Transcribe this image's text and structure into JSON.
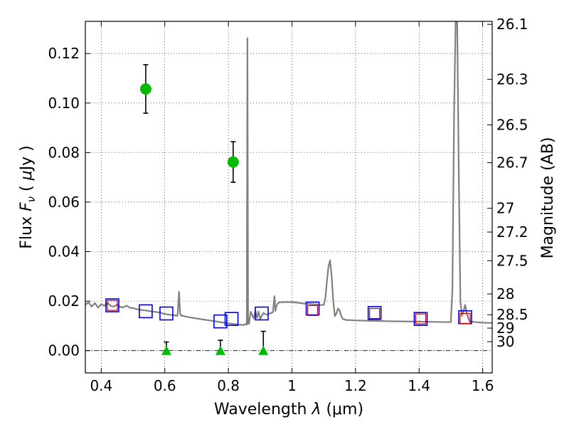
{
  "chart_data": {
    "type": "scatter",
    "xlabel": "Wavelength  λ (μm)",
    "ylabel": "Flux  Fν  ( μJy )",
    "ylabel_parts": {
      "prefix": "Flux",
      "symbol": "F",
      "subscript": "ν",
      "unit_open": "(",
      "unit_mu": "μ",
      "unit": "Jy )"
    },
    "xlabel_parts": {
      "prefix": "Wavelength",
      "symbol": "λ",
      "unit": "(μm)"
    },
    "y2label": "Magnitude (AB)",
    "xlim": [
      0.35,
      1.63
    ],
    "ylim": [
      -0.009,
      0.133
    ],
    "grid": true,
    "x_ticks": [
      0.4,
      0.6,
      0.8,
      1.0,
      1.2,
      1.4,
      1.6
    ],
    "x_tick_labels": [
      "0.4",
      "0.6",
      "0.8",
      "1",
      "1.2",
      "1.4",
      "1.6"
    ],
    "y_ticks": [
      0.0,
      0.02,
      0.04,
      0.06,
      0.08,
      0.1,
      0.12
    ],
    "y_tick_labels": [
      "0.00",
      "0.02",
      "0.04",
      "0.06",
      "0.08",
      "0.10",
      "0.12"
    ],
    "mag_ticks": [
      {
        "label": "26.1",
        "flux": 0.1318
      },
      {
        "label": "26.3",
        "flux": 0.1096
      },
      {
        "label": "26.5",
        "flux": 0.0912
      },
      {
        "label": "26.7",
        "flux": 0.0759
      },
      {
        "label": "27",
        "flux": 0.0575
      },
      {
        "label": "27.2",
        "flux": 0.0479
      },
      {
        "label": "27.5",
        "flux": 0.0363
      },
      {
        "label": "28",
        "flux": 0.0229
      },
      {
        "label": "28.5",
        "flux": 0.0145
      },
      {
        "label": "29",
        "flux": 0.0091
      },
      {
        "label": "30",
        "flux": 0.0036
      }
    ],
    "colors": {
      "model": "#808080",
      "detection": "#00bb00",
      "upper_limit": "#00bb00",
      "model_photometry": "#0000dd",
      "observed_box": "#cc0000",
      "errorbar": "#000000"
    },
    "series": [
      {
        "name": "model spectrum",
        "kind": "line",
        "x": [
          0.35,
          0.36,
          0.37,
          0.38,
          0.39,
          0.4,
          0.41,
          0.42,
          0.43,
          0.44,
          0.45,
          0.46,
          0.47,
          0.48,
          0.49,
          0.5,
          0.52,
          0.54,
          0.56,
          0.58,
          0.6,
          0.62,
          0.64,
          0.645,
          0.648,
          0.652,
          0.655,
          0.66,
          0.68,
          0.7,
          0.72,
          0.74,
          0.76,
          0.78,
          0.8,
          0.82,
          0.84,
          0.85,
          0.855,
          0.858,
          0.86,
          0.862,
          0.865,
          0.87,
          0.88,
          0.885,
          0.89,
          0.895,
          0.9,
          0.91,
          0.92,
          0.93,
          0.94,
          0.945,
          0.948,
          0.951,
          0.955,
          0.96,
          0.98,
          1.0,
          1.02,
          1.04,
          1.06,
          1.08,
          1.09,
          1.1,
          1.105,
          1.11,
          1.115,
          1.12,
          1.125,
          1.13,
          1.135,
          1.14,
          1.145,
          1.15,
          1.155,
          1.16,
          1.17,
          1.2,
          1.25,
          1.3,
          1.35,
          1.4,
          1.45,
          1.5,
          1.505,
          1.51,
          1.515,
          1.52,
          1.525,
          1.53,
          1.535,
          1.54,
          1.545,
          1.55,
          1.555,
          1.56,
          1.58,
          1.6,
          1.62,
          1.63
        ],
        "y": [
          0.0185,
          0.0195,
          0.0178,
          0.0192,
          0.0174,
          0.0188,
          0.0181,
          0.0193,
          0.018,
          0.0178,
          0.0186,
          0.0176,
          0.0175,
          0.0182,
          0.0173,
          0.0172,
          0.0165,
          0.0162,
          0.0158,
          0.0155,
          0.0148,
          0.0144,
          0.0141,
          0.0238,
          0.015,
          0.014,
          0.0142,
          0.0139,
          0.0134,
          0.013,
          0.0126,
          0.0122,
          0.0118,
          0.0114,
          0.011,
          0.0107,
          0.0104,
          0.0104,
          0.0108,
          0.0105,
          0.1262,
          0.011,
          0.0108,
          0.0157,
          0.013,
          0.0162,
          0.0132,
          0.0158,
          0.0128,
          0.0152,
          0.0145,
          0.015,
          0.0155,
          0.022,
          0.016,
          0.018,
          0.019,
          0.0195,
          0.0196,
          0.0196,
          0.0193,
          0.019,
          0.0188,
          0.0186,
          0.0184,
          0.0185,
          0.021,
          0.028,
          0.034,
          0.0365,
          0.03,
          0.02,
          0.014,
          0.015,
          0.017,
          0.0162,
          0.014,
          0.0128,
          0.0124,
          0.0122,
          0.012,
          0.0119,
          0.0118,
          0.0117,
          0.0116,
          0.0115,
          0.025,
          0.095,
          0.133,
          0.133,
          0.07,
          0.02,
          0.014,
          0.016,
          0.0185,
          0.015,
          0.013,
          0.0118,
          0.0115,
          0.0113,
          0.0112,
          0.0112
        ]
      },
      {
        "name": "detections",
        "kind": "circle-errorbar",
        "x": [
          0.54,
          0.815
        ],
        "y": [
          0.1057,
          0.0762
        ],
        "err": [
          0.0098,
          0.0082
        ]
      },
      {
        "name": "upper limits",
        "kind": "triangle-errorbar",
        "x": [
          0.605,
          0.775,
          0.91
        ],
        "y": [
          0.0,
          0.0,
          0.0
        ],
        "err_low": [
          0.0,
          0.0,
          0.0
        ],
        "err_high": [
          0.0035,
          0.0042,
          0.0078
        ]
      },
      {
        "name": "model photometry",
        "kind": "square",
        "x": [
          0.435,
          0.54,
          0.605,
          0.775,
          0.81,
          0.905,
          1.065,
          1.26,
          1.405,
          1.545
        ],
        "y": [
          0.0183,
          0.0159,
          0.015,
          0.0118,
          0.0128,
          0.015,
          0.017,
          0.0152,
          0.0128,
          0.0135
        ]
      },
      {
        "name": "observed photometry",
        "kind": "box",
        "x": [
          0.435,
          1.065,
          1.26,
          1.405,
          1.545
        ],
        "y": [
          0.0183,
          0.0162,
          0.015,
          0.0128,
          0.013
        ]
      }
    ]
  }
}
